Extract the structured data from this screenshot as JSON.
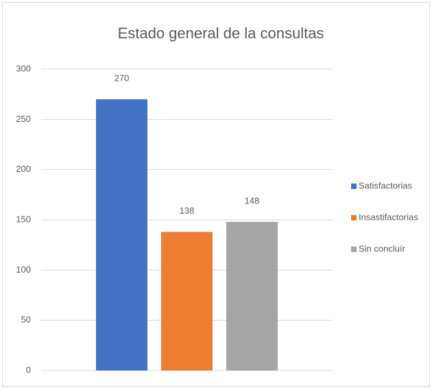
{
  "chart_data": {
    "type": "bar",
    "title": "Estado general de la consultas",
    "categories": [
      null
    ],
    "series": [
      {
        "name": "Satisfactorias",
        "color": "#4472c4",
        "values": [
          270
        ]
      },
      {
        "name": "Insastifactorias",
        "color": "#ed7d31",
        "values": [
          138
        ]
      },
      {
        "name": "Sin concluír",
        "color": "#a5a5a5",
        "values": [
          148
        ]
      }
    ],
    "ylim": [
      0,
      300
    ],
    "yticks": [
      0,
      50,
      100,
      150,
      200,
      250,
      300
    ],
    "grid": true,
    "legend": "right"
  }
}
